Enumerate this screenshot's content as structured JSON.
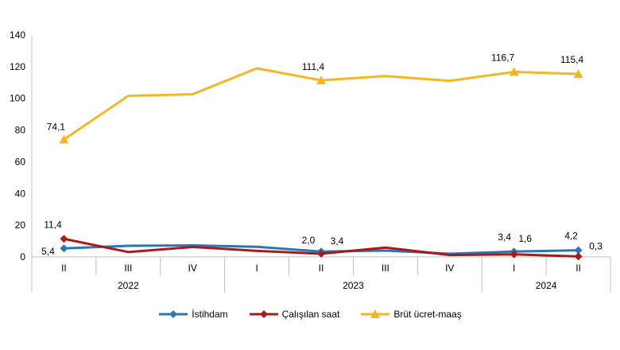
{
  "chart_data": {
    "type": "line",
    "categories": [
      "II",
      "III",
      "IV",
      "I",
      "II",
      "III",
      "IV",
      "I",
      "II"
    ],
    "years": [
      {
        "label": "2022",
        "from": 0,
        "to": 2
      },
      {
        "label": "2023",
        "from": 3,
        "to": 6
      },
      {
        "label": "2024",
        "from": 7,
        "to": 8
      }
    ],
    "ylim": [
      0,
      140
    ],
    "yticks": [
      0,
      20,
      40,
      60,
      80,
      100,
      120,
      140
    ],
    "grid": false,
    "legend_position": "bottom",
    "series": [
      {
        "name": "İstihdam",
        "color": "#2E75B6",
        "marker": "diamond",
        "values": [
          5.4,
          7.0,
          7.3,
          6.4,
          3.4,
          4.0,
          2.0,
          3.4,
          4.2
        ],
        "labels": [
          {
            "index": 0,
            "text": "5,4"
          },
          {
            "index": 4,
            "text": "3,4"
          },
          {
            "index": 7,
            "text": "3,4"
          },
          {
            "index": 8,
            "text": "4,2"
          }
        ]
      },
      {
        "name": "Çalışılan saat",
        "color": "#A61C1C",
        "marker": "diamond",
        "values": [
          11.4,
          3.1,
          6.3,
          3.8,
          2.0,
          5.9,
          1.2,
          1.6,
          0.3
        ],
        "labels": [
          {
            "index": 0,
            "text": "11,4"
          },
          {
            "index": 4,
            "text": "2,0"
          },
          {
            "index": 7,
            "text": "1,6"
          },
          {
            "index": 8,
            "text": "0,3"
          }
        ]
      },
      {
        "name": "Brüt ücret-maaş",
        "color": "#F2B824",
        "marker": "triangle",
        "values": [
          74.1,
          101.6,
          102.6,
          119.0,
          111.4,
          114.1,
          111.1,
          116.7,
          115.4
        ],
        "labels": [
          {
            "index": 0,
            "text": "74,1"
          },
          {
            "index": 4,
            "text": "111,4"
          },
          {
            "index": 7,
            "text": "116,7"
          },
          {
            "index": 8,
            "text": "115,4"
          }
        ]
      }
    ]
  }
}
